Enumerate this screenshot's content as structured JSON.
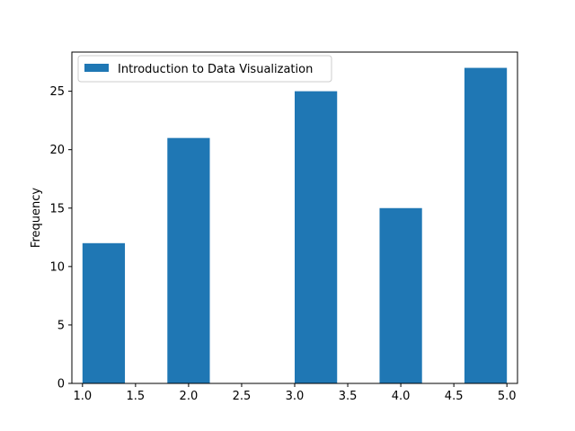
{
  "chart_data": {
    "type": "bar",
    "title": "",
    "xlabel": "",
    "ylabel": "Frequency",
    "xlim": [
      0.9,
      5.1
    ],
    "ylim": [
      0,
      28.35
    ],
    "xticks": [
      "1.0",
      "1.5",
      "2.0",
      "2.5",
      "3.0",
      "3.5",
      "4.0",
      "4.5",
      "5.0"
    ],
    "yticks": [
      "0",
      "5",
      "10",
      "15",
      "20",
      "25"
    ],
    "grid": false,
    "legend": {
      "position": "top-left"
    },
    "colors": {
      "bar": "#1f77b4"
    },
    "series": [
      {
        "name": "Introduction to Data Visualization",
        "bins": [
          {
            "start": 1.0,
            "end": 1.4,
            "value": 12
          },
          {
            "start": 1.4,
            "end": 1.8,
            "value": 0
          },
          {
            "start": 1.8,
            "end": 2.2,
            "value": 21
          },
          {
            "start": 2.2,
            "end": 2.6,
            "value": 0
          },
          {
            "start": 2.6,
            "end": 3.0,
            "value": 0
          },
          {
            "start": 3.0,
            "end": 3.4,
            "value": 25
          },
          {
            "start": 3.4,
            "end": 3.8,
            "value": 0
          },
          {
            "start": 3.8,
            "end": 4.2,
            "value": 15
          },
          {
            "start": 4.2,
            "end": 4.6,
            "value": 0
          },
          {
            "start": 4.6,
            "end": 5.0,
            "value": 27
          }
        ]
      }
    ]
  }
}
